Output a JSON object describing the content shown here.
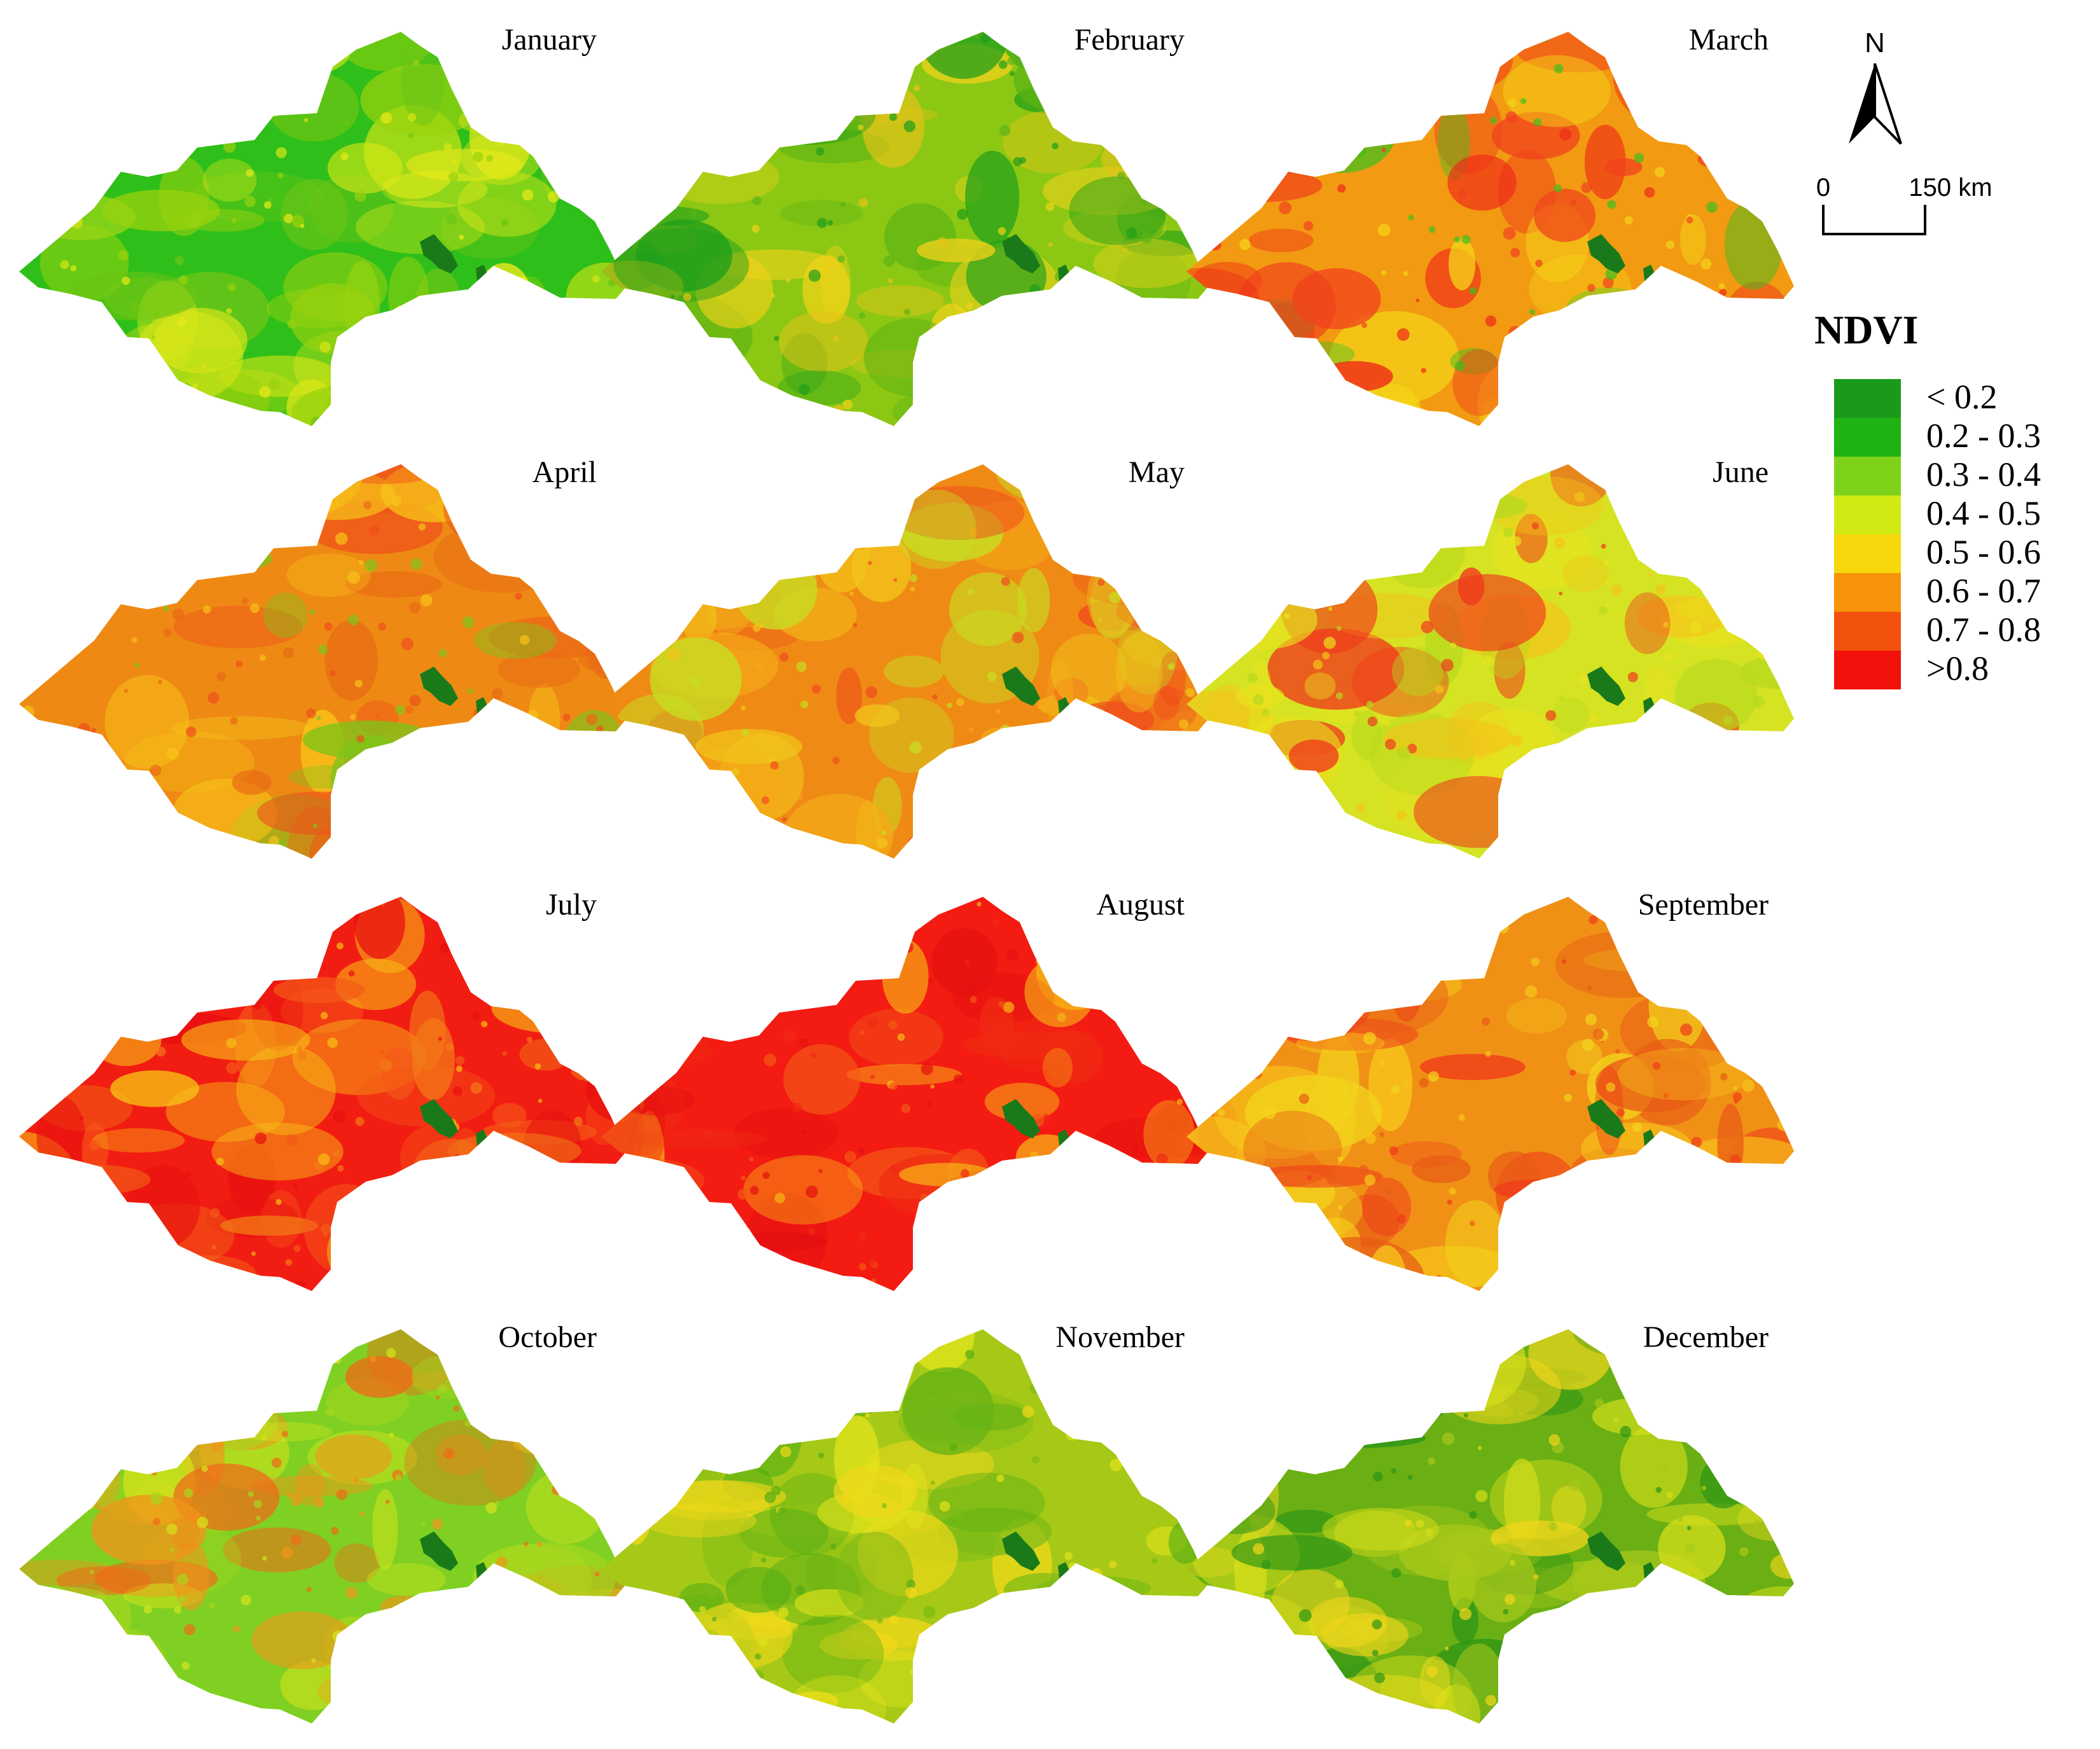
{
  "figure": {
    "months": [
      "January",
      "February",
      "March",
      "April",
      "May",
      "June",
      "July",
      "August",
      "September",
      "October",
      "November",
      "December"
    ],
    "month_palettes": [
      {
        "base": "#2fbf1a",
        "patches": [
          "#d8e617",
          "#9ad20e",
          "#e8e91a",
          "#6bc516"
        ]
      },
      {
        "base": "#8cc813",
        "patches": [
          "#f0d21a",
          "#1e9e1a",
          "#e9c218",
          "#5cb314"
        ]
      },
      {
        "base": "#f29a12",
        "patches": [
          "#f0421c",
          "#f4d518",
          "#3fbf1e",
          "#ef2a18"
        ]
      },
      {
        "base": "#ee8a14",
        "patches": [
          "#f0501a",
          "#f7c318",
          "#7fc41a",
          "#e86a14"
        ]
      },
      {
        "base": "#ef8b14",
        "patches": [
          "#f2c41a",
          "#f04c1c",
          "#c7de22",
          "#f5a818"
        ]
      },
      {
        "base": "#d5e323",
        "patches": [
          "#f4c41a",
          "#f03a1c",
          "#b7d91d",
          "#e8e21e"
        ]
      },
      {
        "base": "#f21d12",
        "patches": [
          "#f45a18",
          "#f7c015",
          "#e81010",
          "#f27a17"
        ]
      },
      {
        "base": "#f31b12",
        "patches": [
          "#f45816",
          "#e40f10",
          "#f7b816",
          "#f02a12"
        ]
      },
      {
        "base": "#f09116",
        "patches": [
          "#f2d41c",
          "#f03b1a",
          "#f7c81a",
          "#e85b16"
        ]
      },
      {
        "base": "#7fd022",
        "patches": [
          "#d7e41c",
          "#f0951a",
          "#a8d61e",
          "#f06a18"
        ]
      },
      {
        "base": "#a6c917",
        "patches": [
          "#e2e41b",
          "#54ad14",
          "#f2d81a",
          "#7cbb16"
        ]
      },
      {
        "base": "#6ab014",
        "patches": [
          "#d6de1a",
          "#2e9515",
          "#f2d61b",
          "#a8c81a"
        ]
      }
    ],
    "water_color": "#1a7a1a"
  },
  "north_arrow": {
    "label": "N"
  },
  "scale_bar": {
    "label_start": "0",
    "label_end": "150 km"
  },
  "legend": {
    "title": "NDVI",
    "classes": [
      {
        "label": "< 0.2",
        "color": "#1a9a1a"
      },
      {
        "label": "0.2 - 0.3",
        "color": "#1fb414"
      },
      {
        "label": "0.3 - 0.4",
        "color": "#7fd21a"
      },
      {
        "label": "0.4 - 0.5",
        "color": "#d2ea14"
      },
      {
        "label": "0.5 - 0.6",
        "color": "#f7d80c"
      },
      {
        "label": "0.6 - 0.7",
        "color": "#f7920a"
      },
      {
        "label": "0.7 - 0.8",
        "color": "#f2520c"
      },
      {
        "label": ">0.8",
        "color": "#f2120c"
      }
    ]
  }
}
